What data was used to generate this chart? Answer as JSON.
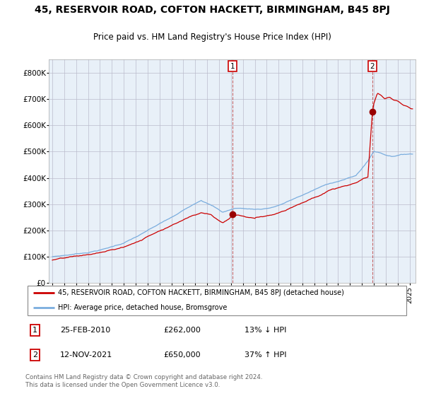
{
  "title": "45, RESERVOIR ROAD, COFTON HACKETT, BIRMINGHAM, B45 8PJ",
  "subtitle": "Price paid vs. HM Land Registry's House Price Index (HPI)",
  "title_fontsize": 10,
  "subtitle_fontsize": 8.5,
  "hpi_color": "#7aadde",
  "price_color": "#cc0000",
  "marker_color": "#990000",
  "background_plot": "#e8f0f8",
  "grid_color": "#bbbbcc",
  "ylim": [
    0,
    850000
  ],
  "yticks": [
    0,
    100000,
    200000,
    300000,
    400000,
    500000,
    600000,
    700000,
    800000
  ],
  "ytick_labels": [
    "£0",
    "£100K",
    "£200K",
    "£300K",
    "£400K",
    "£500K",
    "£600K",
    "£700K",
    "£800K"
  ],
  "xlim_start": 1994.7,
  "xlim_end": 2025.5,
  "sale1_date": 2010.146,
  "sale1_price": 262000,
  "sale2_date": 2021.869,
  "sale2_price": 650000,
  "legend_line1": "45, RESERVOIR ROAD, COFTON HACKETT, BIRMINGHAM, B45 8PJ (detached house)",
  "legend_line2": "HPI: Average price, detached house, Bromsgrove",
  "annotation1_label": "1",
  "annotation1_date": "25-FEB-2010",
  "annotation1_price": "£262,000",
  "annotation1_hpi": "13% ↓ HPI",
  "annotation2_label": "2",
  "annotation2_date": "12-NOV-2021",
  "annotation2_price": "£650,000",
  "annotation2_hpi": "37% ↑ HPI",
  "footer": "Contains HM Land Registry data © Crown copyright and database right 2024.\nThis data is licensed under the Open Government Licence v3.0."
}
